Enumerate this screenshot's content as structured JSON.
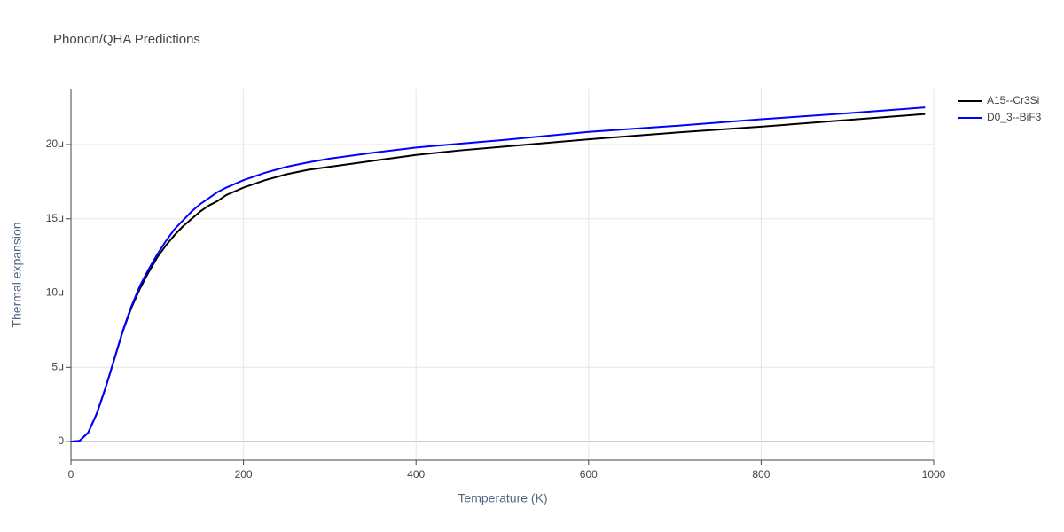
{
  "chart_data": {
    "type": "line",
    "title": "Phonon/QHA Predictions",
    "x_label": "Temperature (K)",
    "y_label": "Thermal expansion",
    "x": [
      0,
      10,
      20,
      30,
      40,
      50,
      60,
      70,
      80,
      90,
      100,
      110,
      120,
      130,
      140,
      150,
      160,
      170,
      180,
      200,
      225,
      250,
      275,
      300,
      350,
      400,
      450,
      500,
      600,
      700,
      800,
      900,
      990
    ],
    "series": [
      {
        "name": "A15--Cr3Si",
        "color": "#000000",
        "values": [
          0,
          5e-08,
          6e-07,
          1.9e-06,
          3.6e-06,
          5.5e-06,
          7.4e-06,
          9e-06,
          1.03e-05,
          1.14e-05,
          1.24e-05,
          1.32e-05,
          1.39e-05,
          1.45e-05,
          1.5e-05,
          1.55e-05,
          1.59e-05,
          1.62e-05,
          1.66e-05,
          1.71e-05,
          1.76e-05,
          1.8e-05,
          1.83e-05,
          1.85e-05,
          1.89e-05,
          1.93e-05,
          1.96e-05,
          1.985e-05,
          2.035e-05,
          2.08e-05,
          2.12e-05,
          2.165e-05,
          2.205e-05
        ]
      },
      {
        "name": "D0_3--BiF3",
        "color": "#0000ff",
        "values": [
          0,
          5e-08,
          6e-07,
          1.9e-06,
          3.6e-06,
          5.5e-06,
          7.45e-06,
          9.1e-06,
          1.05e-05,
          1.16e-05,
          1.26e-05,
          1.35e-05,
          1.43e-05,
          1.49e-05,
          1.55e-05,
          1.6e-05,
          1.64e-05,
          1.68e-05,
          1.71e-05,
          1.76e-05,
          1.81e-05,
          1.85e-05,
          1.88e-05,
          1.905e-05,
          1.945e-05,
          1.98e-05,
          2.005e-05,
          2.03e-05,
          2.085e-05,
          2.125e-05,
          2.17e-05,
          2.21e-05,
          2.25e-05
        ]
      }
    ],
    "xlim": [
      0,
      1000
    ],
    "xticks": [
      0,
      200,
      400,
      600,
      800,
      1000
    ],
    "ylim": [
      -1.25e-06,
      2.376e-05
    ],
    "yticks": [
      0,
      {
        "value": 5e-06,
        "label": "5μ"
      },
      {
        "value": 1e-05,
        "label": "10μ"
      },
      {
        "value": 1.5e-05,
        "label": "15μ"
      },
      {
        "value": 2e-05,
        "label": "20μ"
      }
    ],
    "grid": true,
    "legend": "top-right"
  }
}
